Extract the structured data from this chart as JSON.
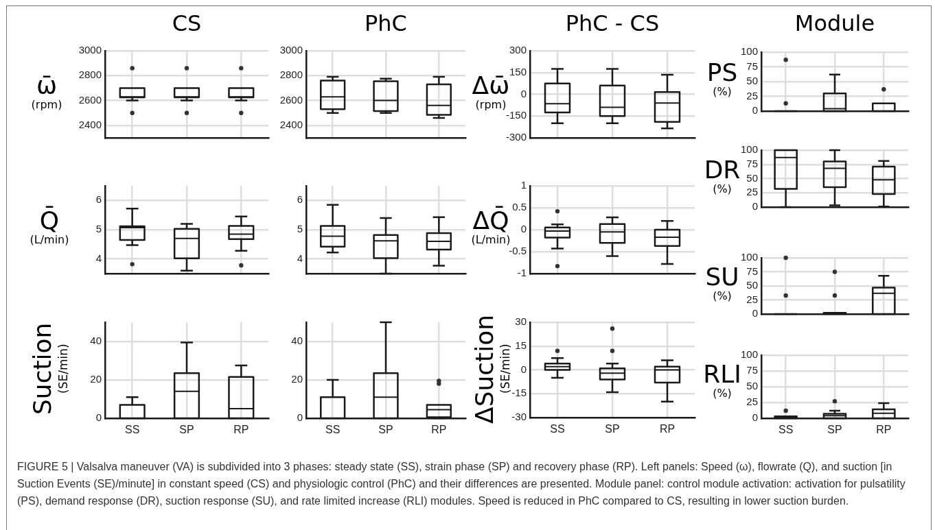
{
  "chart_data": [
    {
      "type": "box",
      "title": "CS",
      "ylabel": "ω̄ (rpm)",
      "categories": [
        null,
        null,
        null
      ],
      "ylim": [
        2300,
        3000
      ],
      "yticks": [
        2400,
        2600,
        2800,
        3000
      ],
      "tick_labels": "y",
      "grid": true,
      "boxes": [
        {
          "low": 2600,
          "q1": 2625,
          "median": 2630,
          "q3": 2700,
          "high": 2700,
          "outliers": [
            2860,
            2500
          ]
        },
        {
          "low": 2600,
          "q1": 2625,
          "median": 2630,
          "q3": 2700,
          "high": 2700,
          "outliers": [
            2860,
            2500
          ]
        },
        {
          "low": 2600,
          "q1": 2625,
          "median": 2630,
          "q3": 2700,
          "high": 2700,
          "outliers": [
            2860,
            2500
          ]
        }
      ]
    },
    {
      "type": "box",
      "title": "PhC",
      "categories": [
        null,
        null,
        null
      ],
      "ylim": [
        2300,
        3000
      ],
      "yticks": [
        2400,
        2600,
        2800,
        3000
      ],
      "tick_labels": "y",
      "grid": true,
      "boxes": [
        {
          "low": 2500,
          "q1": 2530,
          "median": 2630,
          "q3": 2760,
          "high": 2790
        },
        {
          "low": 2500,
          "q1": 2515,
          "median": 2600,
          "q3": 2755,
          "high": 2775
        },
        {
          "low": 2460,
          "q1": 2485,
          "median": 2560,
          "q3": 2730,
          "high": 2790
        }
      ]
    },
    {
      "type": "box",
      "title": "PhC - CS",
      "ylabel": "Δω̄ (rpm)",
      "categories": [
        null,
        null,
        null
      ],
      "ylim": [
        -300,
        300
      ],
      "yticks": [
        -300,
        -150,
        0,
        150,
        300
      ],
      "tick_labels": "y",
      "grid": true,
      "boxes": [
        {
          "low": -200,
          "q1": -125,
          "median": -65,
          "q3": 75,
          "high": 175
        },
        {
          "low": -200,
          "q1": -150,
          "median": -90,
          "q3": 60,
          "high": 175
        },
        {
          "low": -235,
          "q1": -190,
          "median": -60,
          "q3": 15,
          "high": 135
        }
      ]
    },
    {
      "type": "box",
      "title": "Module",
      "ylabel": "PS (%)",
      "categories": [
        null,
        null,
        null
      ],
      "ylim": [
        0,
        100
      ],
      "yticks": [
        0,
        25,
        50,
        75,
        100
      ],
      "tick_labels": "y",
      "grid": true,
      "boxes": [
        {
          "low": 0,
          "q1": 0,
          "median": 0,
          "q3": 0,
          "high": 0,
          "outliers": [
            87,
            13
          ]
        },
        {
          "low": 0,
          "q1": 0,
          "median": 4,
          "q3": 30,
          "high": 62
        },
        {
          "low": 0,
          "q1": 0,
          "median": 0,
          "q3": 13,
          "high": 13,
          "outliers": [
            37
          ]
        }
      ]
    },
    {
      "type": "box",
      "ylabel": "Q̄ (L/min)",
      "categories": [
        null,
        null,
        null
      ],
      "ylim": [
        3.5,
        6.5
      ],
      "yticks": [
        4,
        5,
        6
      ],
      "tick_labels": "y",
      "grid": true,
      "boxes": [
        {
          "low": 4.47,
          "q1": 4.65,
          "median": 5.07,
          "q3": 5.12,
          "high": 5.72,
          "outliers": [
            3.82
          ]
        },
        {
          "low": 3.6,
          "q1": 4.02,
          "median": 4.7,
          "q3": 5.03,
          "high": 5.2
        },
        {
          "low": 4.28,
          "q1": 4.68,
          "median": 4.85,
          "q3": 5.13,
          "high": 5.45,
          "outliers": [
            3.78
          ]
        }
      ]
    },
    {
      "type": "box",
      "categories": [
        null,
        null,
        null
      ],
      "ylim": [
        3.5,
        6.5
      ],
      "yticks": [
        4,
        5,
        6
      ],
      "tick_labels": "y",
      "grid": true,
      "boxes": [
        {
          "low": 4.22,
          "q1": 4.42,
          "median": 4.78,
          "q3": 5.13,
          "high": 5.85
        },
        {
          "low": 3.5,
          "q1": 4.03,
          "median": 4.62,
          "q3": 4.82,
          "high": 5.4
        },
        {
          "low": 3.77,
          "q1": 4.32,
          "median": 4.6,
          "q3": 4.88,
          "high": 5.43
        }
      ]
    },
    {
      "type": "box",
      "ylabel": "ΔQ̄ (L/min)",
      "categories": [
        null,
        null,
        null
      ],
      "ylim": [
        -1,
        1
      ],
      "yticks": [
        -1,
        -0.5,
        0,
        0.5,
        1
      ],
      "tick_labels": "y",
      "grid": true,
      "boxes": [
        {
          "low": -0.43,
          "q1": -0.18,
          "median": -0.03,
          "q3": 0.05,
          "high": 0.12,
          "outliers": [
            0.42,
            -0.83
          ]
        },
        {
          "low": -0.6,
          "q1": -0.3,
          "median": -0.05,
          "q3": 0.13,
          "high": 0.28
        },
        {
          "low": -0.78,
          "q1": -0.37,
          "median": -0.17,
          "q3": 0,
          "high": 0.2
        }
      ]
    },
    {
      "type": "box",
      "ylabel": "DR (%)",
      "categories": [
        null,
        null,
        null
      ],
      "ylim": [
        0,
        100
      ],
      "yticks": [
        0,
        25,
        50,
        75,
        100
      ],
      "tick_labels": "y",
      "grid": true,
      "boxes": [
        {
          "low": 0,
          "q1": 32,
          "median": 87,
          "q3": 100,
          "high": 100
        },
        {
          "low": 3,
          "q1": 35,
          "median": 68,
          "q3": 80,
          "high": 100
        },
        {
          "low": 1,
          "q1": 23,
          "median": 48,
          "q3": 71,
          "high": 81
        }
      ]
    },
    {
      "type": "box",
      "ylabel": "Suction (SE/min)",
      "categories": [
        "SS",
        "SP",
        "RP"
      ],
      "ylim": [
        0,
        50
      ],
      "yticks": [
        0,
        20,
        40
      ],
      "grid": true,
      "boxes": [
        {
          "low": 0,
          "q1": 0,
          "median": 0,
          "q3": 7,
          "high": 11
        },
        {
          "low": 0,
          "q1": 0,
          "median": 14,
          "q3": 23.5,
          "high": 39.5
        },
        {
          "low": 0,
          "q1": 0,
          "median": 5,
          "q3": 21.5,
          "high": 27.5
        }
      ]
    },
    {
      "type": "box",
      "categories": [
        "SS",
        "SP",
        "RP"
      ],
      "ylim": [
        0,
        50
      ],
      "yticks": [
        0,
        20,
        40
      ],
      "grid": true,
      "boxes": [
        {
          "low": 0,
          "q1": 0,
          "median": 0,
          "q3": 11,
          "high": 20
        },
        {
          "low": 0,
          "q1": 0,
          "median": 11,
          "q3": 23.5,
          "high": 50
        },
        {
          "low": 0,
          "q1": 0.5,
          "median": 4.5,
          "q3": 7,
          "high": 7,
          "outliers": [
            18,
            19.5
          ]
        }
      ]
    },
    {
      "type": "box",
      "ylabel": "ΔSuction (SE/min)",
      "categories": [
        "SS",
        "SP",
        "RP"
      ],
      "ylim": [
        -30,
        30
      ],
      "yticks": [
        -30,
        -15,
        0,
        15,
        30
      ],
      "grid": true,
      "boxes": [
        {
          "low": -5,
          "q1": 0,
          "median": 2,
          "q3": 4,
          "high": 7.5,
          "outliers": [
            12
          ]
        },
        {
          "low": -14,
          "q1": -6,
          "median": -2,
          "q3": 1,
          "high": 4,
          "outliers": [
            12,
            26
          ]
        },
        {
          "low": -20,
          "q1": -8,
          "median": 0,
          "q3": 2,
          "high": 6
        }
      ]
    },
    {
      "type": "box",
      "ylabel": "SU (%)",
      "categories": [
        null,
        null,
        null
      ],
      "ylim": [
        0,
        100
      ],
      "yticks": [
        0,
        25,
        50,
        75,
        100
      ],
      "tick_labels": "y",
      "grid": true,
      "boxes": [
        {
          "low": 0,
          "q1": 0,
          "median": 0,
          "q3": 0,
          "high": 0,
          "outliers": [
            33,
            100
          ]
        },
        {
          "low": 0,
          "q1": 0,
          "median": 0,
          "q3": 2,
          "high": 2,
          "outliers": [
            33,
            75
          ]
        },
        {
          "low": 0,
          "q1": 0,
          "median": 37,
          "q3": 47,
          "high": 68
        }
      ]
    },
    {
      "type": "box",
      "ylabel": "RLI (%)",
      "categories": [
        "SS",
        "SP",
        "RP"
      ],
      "ylim": [
        0,
        100
      ],
      "yticks": [
        0,
        25,
        50,
        75,
        100
      ],
      "grid": true,
      "boxes": [
        {
          "low": 0,
          "q1": 0,
          "median": 1,
          "q3": 3,
          "high": 3,
          "outliers": [
            12
          ]
        },
        {
          "low": 0,
          "q1": 0,
          "median": 4,
          "q3": 7,
          "high": 12,
          "outliers": [
            27
          ]
        },
        {
          "low": 0,
          "q1": 0,
          "median": 8,
          "q3": 14,
          "high": 24
        }
      ],
      "annotations": [
        "FIGURE 5 | Valsalva maneuver (VA) is subdivided into 3 phases: steady state (SS), strain phase (SP) and recovery phase (RP). Left panels: Speed (ω), flowrate (Q), and suction [in Suction Events (SE)/minute] in constant speed (CS) and physiologic control (PhC) and their differences are presented. Module panel: control module activation: activation for pulsatility (PS), demand response (DR), suction response (SU), and rate limited increase (RLI) modules. Speed is reduced in PhC compared to CS, resulting in lower suction burden."
      ]
    }
  ]
}
